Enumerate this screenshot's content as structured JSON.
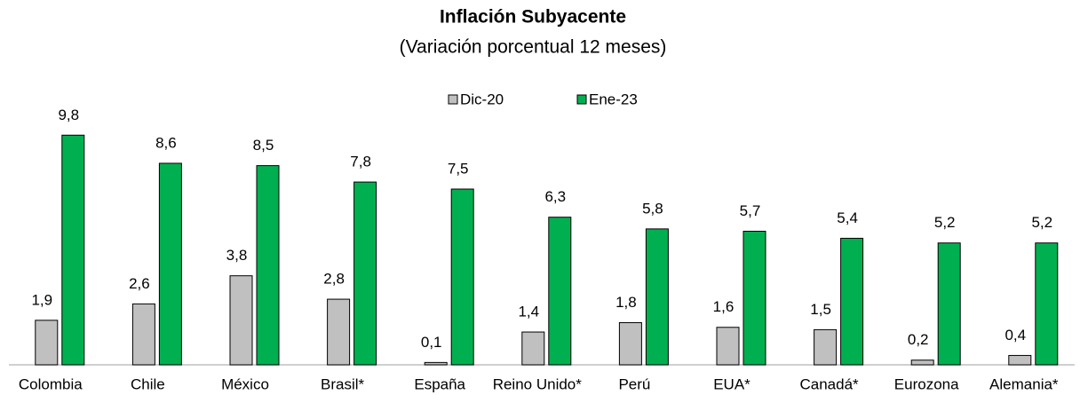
{
  "chart_data": {
    "type": "bar",
    "title": "Inflación Subyacente",
    "subtitle": "(Variación porcentual 12 meses)",
    "categories": [
      "Colombia",
      "Chile",
      "México",
      "Brasil*",
      "España",
      "Reino Unido*",
      "Perú",
      "EUA*",
      "Canadá*",
      "Eurozona",
      "Alemania*"
    ],
    "series": [
      {
        "name": "Dic-20",
        "color": "#c0c0c0",
        "values": [
          1.9,
          2.6,
          3.8,
          2.8,
          0.1,
          1.4,
          1.8,
          1.6,
          1.5,
          0.2,
          0.4
        ],
        "value_labels": [
          "1,9",
          "2,6",
          "3,8",
          "2,8",
          "0,1",
          "1,4",
          "1,8",
          "1,6",
          "1,5",
          "0,2",
          "0,4"
        ]
      },
      {
        "name": "Ene-23",
        "color": "#00b050",
        "values": [
          9.8,
          8.6,
          8.5,
          7.8,
          7.5,
          6.3,
          5.8,
          5.7,
          5.4,
          5.2,
          5.2
        ],
        "value_labels": [
          "9,8",
          "8,6",
          "8,5",
          "7,8",
          "7,5",
          "6,3",
          "5,8",
          "5,7",
          "5,4",
          "5,2",
          "5,2"
        ]
      }
    ],
    "legend": "top"
  }
}
